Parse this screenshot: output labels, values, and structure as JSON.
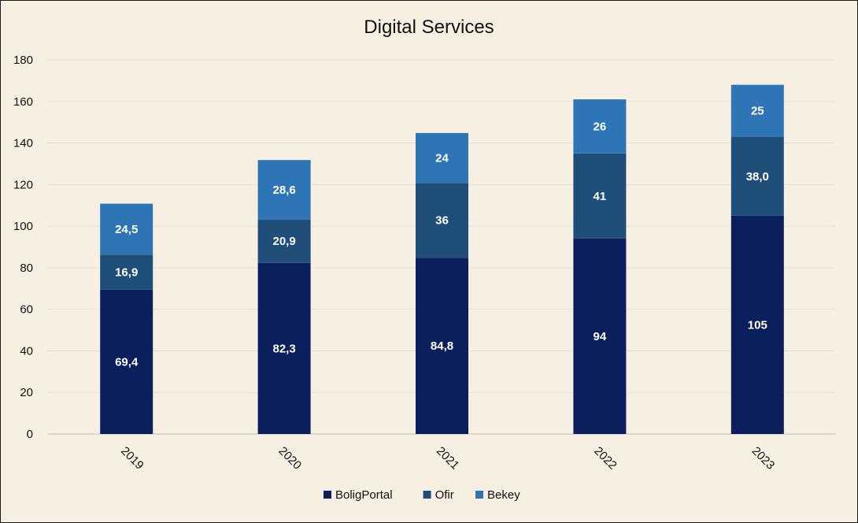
{
  "chart_data": {
    "type": "bar",
    "stacked": true,
    "title": "Digital Services",
    "categories": [
      "2019",
      "2020",
      "2021",
      "2022",
      "2023"
    ],
    "series": [
      {
        "name": "BoligPortal",
        "color": "#0b1f5c",
        "values": [
          69.4,
          82.3,
          84.8,
          94,
          105
        ],
        "labels": [
          "69,4",
          "82,3",
          "84,8",
          "94",
          "105"
        ]
      },
      {
        "name": "Ofir",
        "color": "#1f4e79",
        "values": [
          16.9,
          20.9,
          36,
          41,
          38.0
        ],
        "labels": [
          "16,9",
          "20,9",
          "36",
          "41",
          "38,0"
        ]
      },
      {
        "name": "Bekey",
        "color": "#2e75b6",
        "values": [
          24.5,
          28.6,
          24,
          26,
          25
        ],
        "labels": [
          "24,5",
          "28,6",
          "24",
          "26",
          "25"
        ]
      }
    ],
    "ylim": [
      0,
      180
    ],
    "yticks": [
      0,
      20,
      40,
      60,
      80,
      100,
      120,
      140,
      160,
      180
    ],
    "grid": true,
    "legend": "bottom-center",
    "xlabel": "",
    "ylabel": ""
  }
}
